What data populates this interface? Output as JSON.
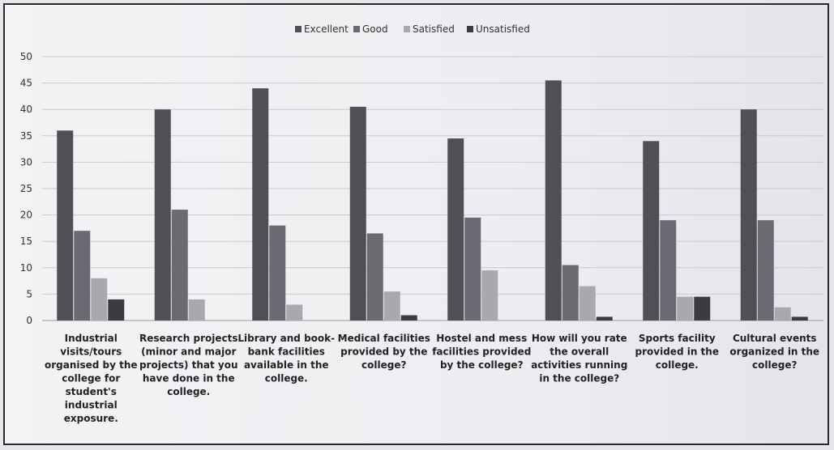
{
  "chart_data": {
    "type": "bar",
    "categories": [
      "Industrial visits/tours organised by the college for student's industrial exposure.",
      "Research projects (minor and major projects) that you have done in the college.",
      "Library and book-bank facilities available in the college.",
      "Medical facilities provided by the college?",
      "Hostel and mess facilities provided by the college?",
      "How will you rate the overall activities running in the college?",
      "Sports facility provided in the college.",
      "Cultural events organized in the college?"
    ],
    "category_lines": [
      [
        "Industrial",
        "visits/tours",
        "organised by the",
        "college for",
        "student's",
        "industrial",
        "exposure."
      ],
      [
        "Research projects",
        "(minor and major",
        "projects) that you",
        "have done in the",
        "college."
      ],
      [
        "Library and book-",
        "bank facilities",
        "available in the",
        "college."
      ],
      [
        "Medical facilities",
        "provided by the",
        "college?"
      ],
      [
        "Hostel and mess",
        "facilities provided",
        "by the college?"
      ],
      [
        "How will you rate",
        "the overall",
        "activities running",
        "in the college?"
      ],
      [
        "Sports facility",
        "provided in the",
        "college."
      ],
      [
        "Cultural events",
        "organized in the",
        "college?"
      ]
    ],
    "series": [
      {
        "name": "Excellent",
        "color": "#4f4f55",
        "values": [
          36,
          40,
          44,
          40.5,
          34.5,
          45.5,
          34,
          40
        ]
      },
      {
        "name": "Good",
        "color": "#6a6a72",
        "values": [
          17,
          21,
          18,
          16.5,
          19.5,
          10.5,
          19,
          19
        ]
      },
      {
        "name": "Satisfied",
        "color": "#a8a9ae",
        "values": [
          8,
          4,
          3,
          5.5,
          9.5,
          6.5,
          4.5,
          2.5
        ]
      },
      {
        "name": "Unsatisfied",
        "color": "#3c3c40",
        "values": [
          4,
          0,
          0,
          1,
          0,
          0.7,
          4.5,
          0.7
        ]
      }
    ],
    "yticks": [
      "0",
      "5",
      "10",
      "15",
      "20",
      "25",
      "30",
      "35",
      "40",
      "45",
      "50"
    ],
    "ylim": [
      0,
      50
    ],
    "grid": true,
    "legend_position": "top-center"
  }
}
